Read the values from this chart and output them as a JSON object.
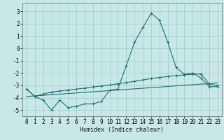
{
  "xlabel": "Humidex (Indice chaleur)",
  "xlim": [
    -0.5,
    23.5
  ],
  "ylim": [
    -5.5,
    3.7
  ],
  "yticks": [
    -5,
    -4,
    -3,
    -2,
    -1,
    0,
    1,
    2,
    3
  ],
  "xticks": [
    0,
    1,
    2,
    3,
    4,
    5,
    6,
    7,
    8,
    9,
    10,
    11,
    12,
    13,
    14,
    15,
    16,
    17,
    18,
    19,
    20,
    21,
    22,
    23
  ],
  "background_color": "#c8e8e8",
  "grid_color": "#a0c8c8",
  "line_color": "#1e6e6e",
  "line1_x": [
    0,
    1,
    2,
    3,
    4,
    5,
    6,
    7,
    8,
    9,
    10,
    11,
    12,
    13,
    14,
    15,
    16,
    17,
    18,
    19,
    20,
    21,
    22,
    23
  ],
  "line1_y": [
    -3.3,
    -3.9,
    -4.2,
    -5.0,
    -4.2,
    -4.8,
    -4.7,
    -4.5,
    -4.5,
    -4.3,
    -3.4,
    -3.3,
    -1.4,
    0.5,
    1.7,
    2.85,
    2.3,
    0.5,
    -1.55,
    -2.1,
    -2.0,
    -2.4,
    -3.1,
    -3.1
  ],
  "line2_x": [
    0,
    1,
    2,
    3,
    4,
    5,
    6,
    7,
    8,
    9,
    10,
    11,
    12,
    13,
    14,
    15,
    16,
    17,
    18,
    19,
    20,
    21,
    22,
    23
  ],
  "line2_y": [
    -3.3,
    -3.9,
    -3.7,
    -3.55,
    -3.45,
    -3.38,
    -3.3,
    -3.22,
    -3.12,
    -3.05,
    -2.97,
    -2.87,
    -2.77,
    -2.67,
    -2.55,
    -2.45,
    -2.35,
    -2.28,
    -2.2,
    -2.15,
    -2.1,
    -2.07,
    -2.9,
    -3.0
  ],
  "line3_x": [
    0,
    23
  ],
  "line3_y": [
    -3.9,
    -2.8
  ]
}
